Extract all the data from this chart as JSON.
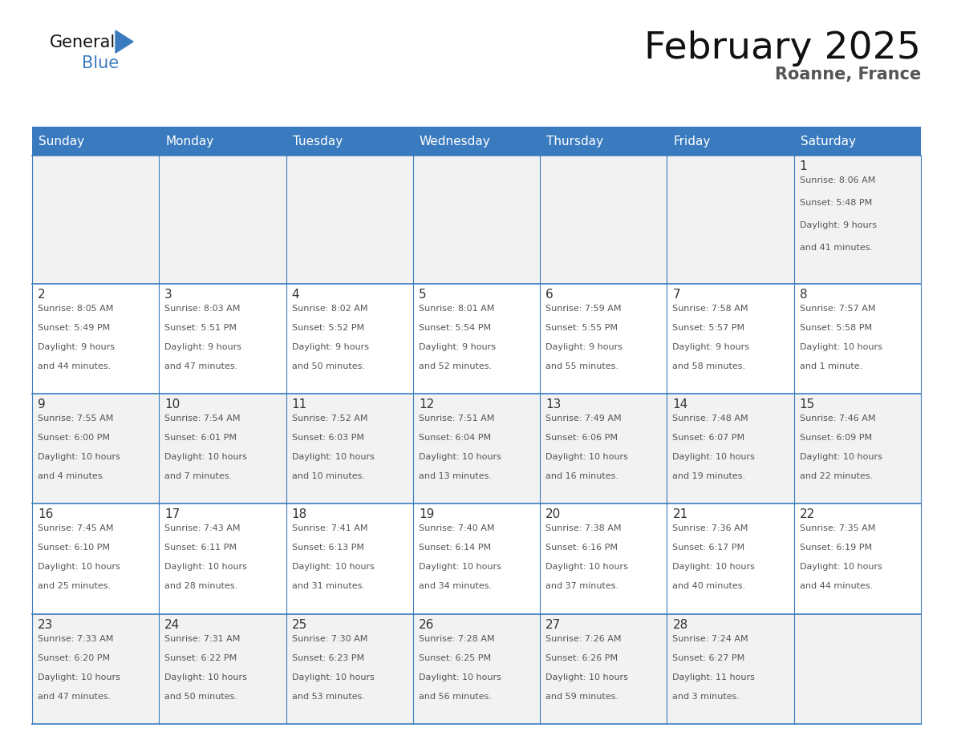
{
  "title": "February 2025",
  "subtitle": "Roanne, France",
  "days_of_week": [
    "Sunday",
    "Monday",
    "Tuesday",
    "Wednesday",
    "Thursday",
    "Friday",
    "Saturday"
  ],
  "header_bg": "#3a7bbf",
  "header_text": "#ffffff",
  "cell_bg_odd": "#f2f2f2",
  "cell_bg_even": "#ffffff",
  "cell_border": "#3a7bbf",
  "day_num_color": "#333333",
  "info_color": "#555555",
  "title_color": "#111111",
  "subtitle_color": "#555555",
  "logo_text_color": "#111111",
  "logo_blue_color": "#3a7bbf",
  "weeks": [
    [
      null,
      null,
      null,
      null,
      null,
      null,
      1
    ],
    [
      2,
      3,
      4,
      5,
      6,
      7,
      8
    ],
    [
      9,
      10,
      11,
      12,
      13,
      14,
      15
    ],
    [
      16,
      17,
      18,
      19,
      20,
      21,
      22
    ],
    [
      23,
      24,
      25,
      26,
      27,
      28,
      null
    ]
  ],
  "day_data": {
    "1": {
      "sunrise": "8:06 AM",
      "sunset": "5:48 PM",
      "daylight": "9 hours and 41 minutes"
    },
    "2": {
      "sunrise": "8:05 AM",
      "sunset": "5:49 PM",
      "daylight": "9 hours and 44 minutes"
    },
    "3": {
      "sunrise": "8:03 AM",
      "sunset": "5:51 PM",
      "daylight": "9 hours and 47 minutes"
    },
    "4": {
      "sunrise": "8:02 AM",
      "sunset": "5:52 PM",
      "daylight": "9 hours and 50 minutes"
    },
    "5": {
      "sunrise": "8:01 AM",
      "sunset": "5:54 PM",
      "daylight": "9 hours and 52 minutes"
    },
    "6": {
      "sunrise": "7:59 AM",
      "sunset": "5:55 PM",
      "daylight": "9 hours and 55 minutes"
    },
    "7": {
      "sunrise": "7:58 AM",
      "sunset": "5:57 PM",
      "daylight": "9 hours and 58 minutes"
    },
    "8": {
      "sunrise": "7:57 AM",
      "sunset": "5:58 PM",
      "daylight": "10 hours and 1 minute"
    },
    "9": {
      "sunrise": "7:55 AM",
      "sunset": "6:00 PM",
      "daylight": "10 hours and 4 minutes"
    },
    "10": {
      "sunrise": "7:54 AM",
      "sunset": "6:01 PM",
      "daylight": "10 hours and 7 minutes"
    },
    "11": {
      "sunrise": "7:52 AM",
      "sunset": "6:03 PM",
      "daylight": "10 hours and 10 minutes"
    },
    "12": {
      "sunrise": "7:51 AM",
      "sunset": "6:04 PM",
      "daylight": "10 hours and 13 minutes"
    },
    "13": {
      "sunrise": "7:49 AM",
      "sunset": "6:06 PM",
      "daylight": "10 hours and 16 minutes"
    },
    "14": {
      "sunrise": "7:48 AM",
      "sunset": "6:07 PM",
      "daylight": "10 hours and 19 minutes"
    },
    "15": {
      "sunrise": "7:46 AM",
      "sunset": "6:09 PM",
      "daylight": "10 hours and 22 minutes"
    },
    "16": {
      "sunrise": "7:45 AM",
      "sunset": "6:10 PM",
      "daylight": "10 hours and 25 minutes"
    },
    "17": {
      "sunrise": "7:43 AM",
      "sunset": "6:11 PM",
      "daylight": "10 hours and 28 minutes"
    },
    "18": {
      "sunrise": "7:41 AM",
      "sunset": "6:13 PM",
      "daylight": "10 hours and 31 minutes"
    },
    "19": {
      "sunrise": "7:40 AM",
      "sunset": "6:14 PM",
      "daylight": "10 hours and 34 minutes"
    },
    "20": {
      "sunrise": "7:38 AM",
      "sunset": "6:16 PM",
      "daylight": "10 hours and 37 minutes"
    },
    "21": {
      "sunrise": "7:36 AM",
      "sunset": "6:17 PM",
      "daylight": "10 hours and 40 minutes"
    },
    "22": {
      "sunrise": "7:35 AM",
      "sunset": "6:19 PM",
      "daylight": "10 hours and 44 minutes"
    },
    "23": {
      "sunrise": "7:33 AM",
      "sunset": "6:20 PM",
      "daylight": "10 hours and 47 minutes"
    },
    "24": {
      "sunrise": "7:31 AM",
      "sunset": "6:22 PM",
      "daylight": "10 hours and 50 minutes"
    },
    "25": {
      "sunrise": "7:30 AM",
      "sunset": "6:23 PM",
      "daylight": "10 hours and 53 minutes"
    },
    "26": {
      "sunrise": "7:28 AM",
      "sunset": "6:25 PM",
      "daylight": "10 hours and 56 minutes"
    },
    "27": {
      "sunrise": "7:26 AM",
      "sunset": "6:26 PM",
      "daylight": "10 hours and 59 minutes"
    },
    "28": {
      "sunrise": "7:24 AM",
      "sunset": "6:27 PM",
      "daylight": "11 hours and 3 minutes"
    }
  }
}
